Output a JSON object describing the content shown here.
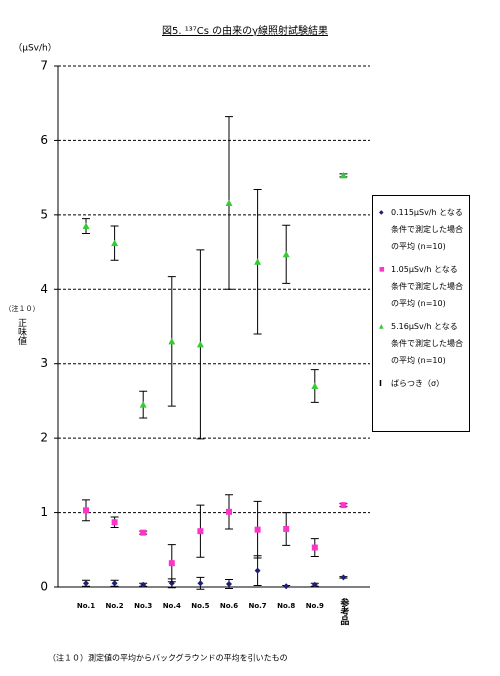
{
  "chart_data": {
    "type": "errorbar_scatter",
    "title": "図5. ¹³⁷Cs の由来のγ線照射試験結果",
    "y_unit": "（μSv/h）",
    "y_note": "（注１０）",
    "y_label": "正味値",
    "footnote": "（注１０）測定値の平均からバックグラウンドの平均を引いたもの",
    "error_legend": "ばらつき（σ）",
    "categories": [
      "No.1",
      "No.2",
      "No.3",
      "No.4",
      "No.5",
      "No.6",
      "No.7",
      "No.8",
      "No.9",
      "参考品"
    ],
    "ylim": [
      0,
      7
    ],
    "yticks": [
      0,
      1,
      2,
      3,
      4,
      5,
      6,
      7
    ],
    "grid": true,
    "series": [
      {
        "name": "0.115μSv/h となる条件で測定した場合の平均 (n=10)",
        "color": "#1f1f7a",
        "marker": "diamond",
        "values": [
          0.05,
          0.05,
          0.03,
          0.05,
          0.05,
          0.04,
          0.22,
          0.01,
          0.03,
          0.13
        ],
        "errors": [
          0.04,
          0.04,
          0.02,
          0.06,
          0.08,
          0.06,
          0.2,
          0.01,
          0.02,
          0.01
        ]
      },
      {
        "name": "1.05μSv/h となる条件で測定した場合の平均 (n=10)",
        "color": "#ff33cc",
        "marker": "square",
        "values": [
          1.03,
          0.87,
          0.73,
          0.32,
          0.75,
          1.01,
          0.77,
          0.78,
          0.53,
          1.1
        ],
        "errors": [
          0.14,
          0.07,
          0.02,
          0.25,
          0.35,
          0.23,
          0.38,
          0.22,
          0.12,
          0.02
        ]
      },
      {
        "name": "5.16μSv/h となる条件で測定した場合の平均 (n=10)",
        "color": "#33cc33",
        "marker": "triangle",
        "values": [
          4.85,
          4.62,
          2.45,
          3.3,
          3.26,
          5.16,
          4.37,
          4.47,
          2.7,
          5.53
        ],
        "errors": [
          0.1,
          0.23,
          0.18,
          0.87,
          1.27,
          1.16,
          0.97,
          0.39,
          0.22,
          0.02
        ]
      }
    ]
  }
}
